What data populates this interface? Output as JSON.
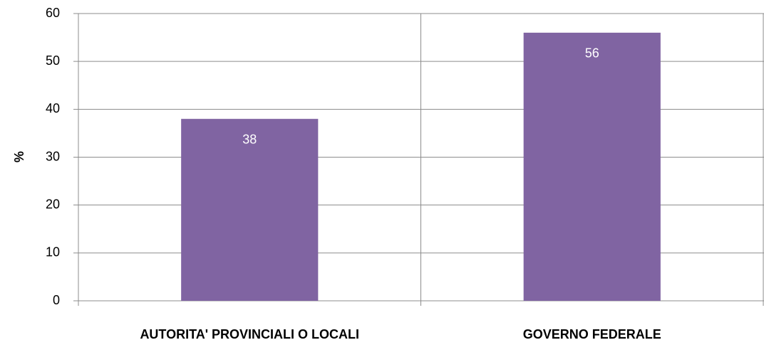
{
  "chart_data": {
    "type": "bar",
    "y_label": "%",
    "categories": [
      "AUTORITA' PROVINCIALI O LOCALI",
      "GOVERNO FEDERALE"
    ],
    "values": [
      38,
      56
    ],
    "color": "#8064a2",
    "ylim": [
      0,
      60
    ],
    "yticks": [
      0,
      10,
      20,
      30,
      40,
      50,
      60
    ],
    "grid": true
  }
}
